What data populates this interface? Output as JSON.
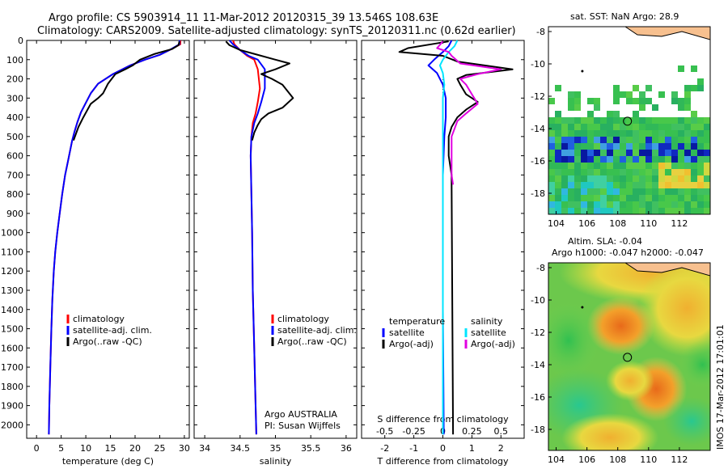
{
  "header": {
    "line1": "Argo profile: CS 5903914_11 11-Mar-2012 20120315_39 13.546S 108.63E",
    "line2": "Climatology: CARS2009. Satellite-adjusted climatology: synTS_20120311.nc (0.62d earlier)"
  },
  "colors": {
    "climatology": "#ff0000",
    "satellite": "#0000ff",
    "argo": "#000000",
    "salinity_satellite": "#00e5ff",
    "salinity_argo": "#e000e0"
  },
  "depth_axis": {
    "ticks": [
      0,
      100,
      200,
      300,
      400,
      500,
      600,
      700,
      800,
      900,
      1000,
      1100,
      1200,
      1300,
      1400,
      1500,
      1600,
      1700,
      1800,
      1900,
      2000
    ],
    "range": [
      0,
      2070
    ]
  },
  "chart_data": [
    {
      "type": "line",
      "id": "temperature",
      "xlabel": "temperature (deg C)",
      "xlim": [
        -2,
        31
      ],
      "xticks": [
        "0",
        "5",
        "10",
        "15",
        "20",
        "25",
        "30"
      ],
      "xtick_values": [
        0,
        5,
        10,
        15,
        20,
        25,
        30
      ],
      "legend": [
        "climatology",
        "satellite-adj. clim.",
        "Argo(..raw -QC)"
      ],
      "series": [
        {
          "name": "climatology",
          "color_key": "climatology",
          "x": [
            29.2,
            29.2,
            27,
            25,
            22,
            19,
            15.5,
            12.5,
            11,
            10,
            9,
            8.3,
            7.7,
            7.2,
            6.8,
            6.4,
            5.8,
            5.2,
            4.7,
            4.2,
            3.8,
            3.5,
            3.2,
            3.0,
            2.8,
            2.6,
            2.5
          ],
          "y": [
            0,
            20,
            50,
            75,
            100,
            130,
            175,
            225,
            275,
            325,
            375,
            425,
            475,
            525,
            575,
            625,
            700,
            800,
            900,
            1000,
            1100,
            1200,
            1350,
            1500,
            1700,
            1900,
            2050
          ]
        },
        {
          "name": "satellite-adj. clim.",
          "color_key": "satellite",
          "x": [
            29.0,
            29.0,
            27,
            25,
            22,
            19,
            15.5,
            12.5,
            11,
            10,
            9,
            8.3,
            7.7,
            7.2,
            6.8,
            6.4,
            5.8,
            5.2,
            4.7,
            4.2,
            3.8,
            3.5,
            3.2,
            3.0,
            2.8,
            2.6,
            2.5
          ],
          "y": [
            0,
            20,
            50,
            75,
            100,
            130,
            175,
            225,
            275,
            325,
            375,
            425,
            475,
            525,
            575,
            625,
            700,
            800,
            900,
            1000,
            1100,
            1200,
            1350,
            1500,
            1700,
            1900,
            2050
          ]
        },
        {
          "name": "Argo(..raw -QC)",
          "color_key": "argo",
          "x": [
            29.0,
            28.8,
            27.5,
            24,
            21,
            19.5,
            18,
            16,
            14.5,
            13.5,
            12.5,
            11,
            9.5,
            8.5,
            7.5
          ],
          "y": [
            5,
            25,
            45,
            70,
            100,
            130,
            150,
            175,
            225,
            275,
            300,
            330,
            400,
            450,
            520
          ]
        }
      ]
    },
    {
      "type": "line",
      "id": "salinity",
      "xlabel": "salinity",
      "xlim": [
        33.85,
        36.15
      ],
      "xticks": [
        "34",
        "34.5",
        "35",
        "35.5",
        "36"
      ],
      "xtick_values": [
        34,
        34.5,
        35,
        35.5,
        36
      ],
      "legend": [
        "climatology",
        "satellite-adj. clim.",
        "Argo(..raw -QC)"
      ],
      "footer": [
        "Argo AUSTRALIA",
        "PI: Susan Wijffels"
      ],
      "series": [
        {
          "name": "climatology",
          "color_key": "climatology",
          "x": [
            34.4,
            34.42,
            34.5,
            34.6,
            34.7,
            34.75,
            34.78,
            34.75,
            34.72,
            34.68,
            34.66,
            34.65,
            34.66,
            34.67,
            34.68,
            34.7,
            34.72,
            34.73
          ],
          "y": [
            0,
            20,
            50,
            80,
            100,
            150,
            250,
            320,
            380,
            430,
            500,
            600,
            800,
            1000,
            1300,
            1600,
            1900,
            2050
          ]
        },
        {
          "name": "satellite-adj. clim.",
          "color_key": "satellite",
          "x": [
            34.35,
            34.4,
            34.5,
            34.62,
            34.75,
            34.85,
            34.85,
            34.8,
            34.75,
            34.7,
            34.66,
            34.65,
            34.66,
            34.67,
            34.68,
            34.7,
            34.72,
            34.73
          ],
          "y": [
            0,
            20,
            50,
            80,
            100,
            150,
            250,
            320,
            380,
            430,
            500,
            600,
            800,
            1000,
            1300,
            1600,
            1900,
            2050
          ]
        },
        {
          "name": "Argo(..raw -QC)",
          "color_key": "argo",
          "x": [
            34.3,
            34.35,
            34.5,
            34.7,
            35.0,
            35.2,
            35.0,
            34.8,
            34.95,
            35.1,
            35.25,
            35.1,
            34.9,
            34.8,
            34.75,
            34.7,
            34.67
          ],
          "y": [
            5,
            25,
            50,
            70,
            100,
            120,
            150,
            175,
            200,
            230,
            300,
            350,
            380,
            410,
            440,
            480,
            520
          ]
        }
      ]
    },
    {
      "type": "line",
      "id": "difference",
      "xlabel": "T difference from climatology",
      "top_label": "S difference from climatology",
      "xlim": [
        -2.8,
        2.8
      ],
      "xticks": [
        "-2",
        "-1",
        "0",
        "1",
        "2"
      ],
      "xtick_values": [
        -2,
        -1,
        0,
        1,
        2
      ],
      "top_xticks": [
        "-0.5",
        "-0.25",
        "0",
        "0.25",
        "0.5"
      ],
      "top_xtick_values": [
        -0.5,
        -0.25,
        0,
        0.25,
        0.5
      ],
      "legend_headers": [
        "temperature",
        "salinity"
      ],
      "legend_left": [
        "satellite",
        "Argo(-adj)"
      ],
      "legend_right": [
        "satellite",
        "Argo(-adj)"
      ],
      "series": [
        {
          "name": "temperature satellite",
          "color_key": "satellite",
          "x": [
            0.3,
            0.2,
            0,
            -0.3,
            -0.5,
            -0.2,
            0,
            0.1,
            0.1,
            0.05,
            0,
            0,
            0,
            0.02,
            0.03
          ],
          "y": [
            0,
            30,
            60,
            100,
            130,
            170,
            230,
            300,
            400,
            500,
            700,
            1000,
            1400,
            1800,
            2050
          ]
        },
        {
          "name": "temperature Argo(-adj)",
          "color_key": "argo",
          "x": [
            0.2,
            -1.2,
            -1.5,
            0,
            0.5,
            2.4,
            0.8,
            0.5,
            0.6,
            0.8,
            1.2,
            0.8,
            0.5,
            0.3,
            0.2,
            0.2,
            0.2,
            0.3,
            0.3,
            0.35
          ],
          "y": [
            5,
            40,
            60,
            80,
            110,
            150,
            180,
            200,
            230,
            280,
            320,
            360,
            400,
            450,
            500,
            550,
            600,
            700,
            750,
            2050
          ]
        },
        {
          "name": "salinity satellite",
          "color_key": "salinity_satellite",
          "x": [
            0.5,
            0.4,
            0.2,
            0,
            -0.1,
            0,
            0.05,
            0,
            0,
            0,
            0,
            0,
            0,
            0
          ],
          "y": [
            0,
            30,
            60,
            100,
            130,
            170,
            230,
            300,
            400,
            600,
            900,
            1300,
            1700,
            2050
          ]
        },
        {
          "name": "salinity Argo(-adj)",
          "color_key": "salinity_argo",
          "x": [
            0,
            -0.2,
            0.2,
            0.3,
            0.6,
            2.0,
            1.2,
            0.6,
            0.8,
            1.0,
            1.2,
            0.8,
            0.5,
            0.4,
            0.3,
            0.3,
            0.3,
            0.35
          ],
          "y": [
            5,
            40,
            60,
            80,
            120,
            150,
            175,
            200,
            230,
            280,
            330,
            380,
            420,
            460,
            500,
            600,
            700,
            750
          ]
        }
      ]
    }
  ],
  "maps": [
    {
      "id": "sst",
      "title": "sat. SST: NaN Argo: 28.9",
      "xlim": [
        103.5,
        114
      ],
      "ylim": [
        -19.3,
        -7.7
      ],
      "xticks": [
        "104",
        "106",
        "108",
        "110",
        "112"
      ],
      "xtick_values": [
        104,
        106,
        108,
        110,
        112
      ],
      "yticks": [
        "-8",
        "-10",
        "-12",
        "-14",
        "-16",
        "-18"
      ],
      "ytick_values": [
        -8,
        -10,
        -12,
        -14,
        -16,
        -18
      ],
      "marker": {
        "lon": 108.63,
        "lat": -13.546
      }
    },
    {
      "id": "sla",
      "title_line1": "Altim. SLA: -0.04",
      "title_line2": "Argo h1000: -0.047 h2000: -0.047",
      "xlim": [
        103.5,
        114
      ],
      "ylim": [
        -19.3,
        -7.7
      ],
      "xticks": [
        "104",
        "106",
        "108",
        "110",
        "112"
      ],
      "xtick_values": [
        104,
        106,
        108,
        110,
        112
      ],
      "yticks": [
        "-8",
        "-10",
        "-12",
        "-14",
        "-16",
        "-18"
      ],
      "ytick_values": [
        -8,
        -10,
        -12,
        -14,
        -16,
        -18
      ],
      "marker": {
        "lon": 108.63,
        "lat": -13.546
      }
    }
  ],
  "stamp": "IMOS 17-Mar-2012 17:01:01"
}
